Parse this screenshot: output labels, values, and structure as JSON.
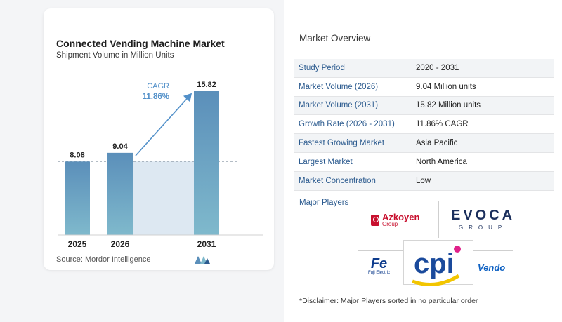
{
  "chart_data": {
    "type": "bar",
    "title": "Connected Vending Machine Market",
    "subtitle": "Shipment Volume in Million Units",
    "categories": [
      "2025",
      "2026",
      "2031"
    ],
    "values": [
      8.08,
      9.04,
      15.82
    ],
    "value_labels": [
      "8.08",
      "9.04",
      "15.82"
    ],
    "ylim": [
      0,
      16
    ],
    "reference_line_value": 8.08,
    "annotation": {
      "label": "CAGR",
      "value": "11.86%"
    },
    "grid": false,
    "legend": "none",
    "colors": {
      "bar_top": "#5b8fba",
      "bar_bottom": "#7fb9cc",
      "shade": "#dde8f2",
      "accent": "#5290c9"
    }
  },
  "source": "Source:  Mordor Intelligence",
  "overview": {
    "title": "Market Overview",
    "rows": [
      {
        "label": "Study Period",
        "value": "2020 - 2031"
      },
      {
        "label": "Market Volume (2026)",
        "value": "9.04 Million units"
      },
      {
        "label": "Market Volume (2031)",
        "value": "15.82 Million units"
      },
      {
        "label": "Growth Rate (2026 - 2031)",
        "value": "11.86% CAGR"
      },
      {
        "label": "Fastest Growing Market",
        "value": "Asia Pacific"
      },
      {
        "label": "Largest Market",
        "value": "North America"
      },
      {
        "label": "Market Concentration",
        "value": "Low"
      }
    ]
  },
  "players": {
    "title": "Major Players",
    "azkoyen": {
      "name": "Azkoyen",
      "group": "Group"
    },
    "evoca": {
      "name": "EVOCA",
      "group": "GROUP"
    },
    "fuji": {
      "mark": "Fe",
      "name": "Fuji Electric"
    },
    "cpi": {
      "name": "cpi"
    },
    "vendo": {
      "name": "Vendo"
    }
  },
  "disclaimer": "*Disclaimer: Major Players sorted in no particular order"
}
